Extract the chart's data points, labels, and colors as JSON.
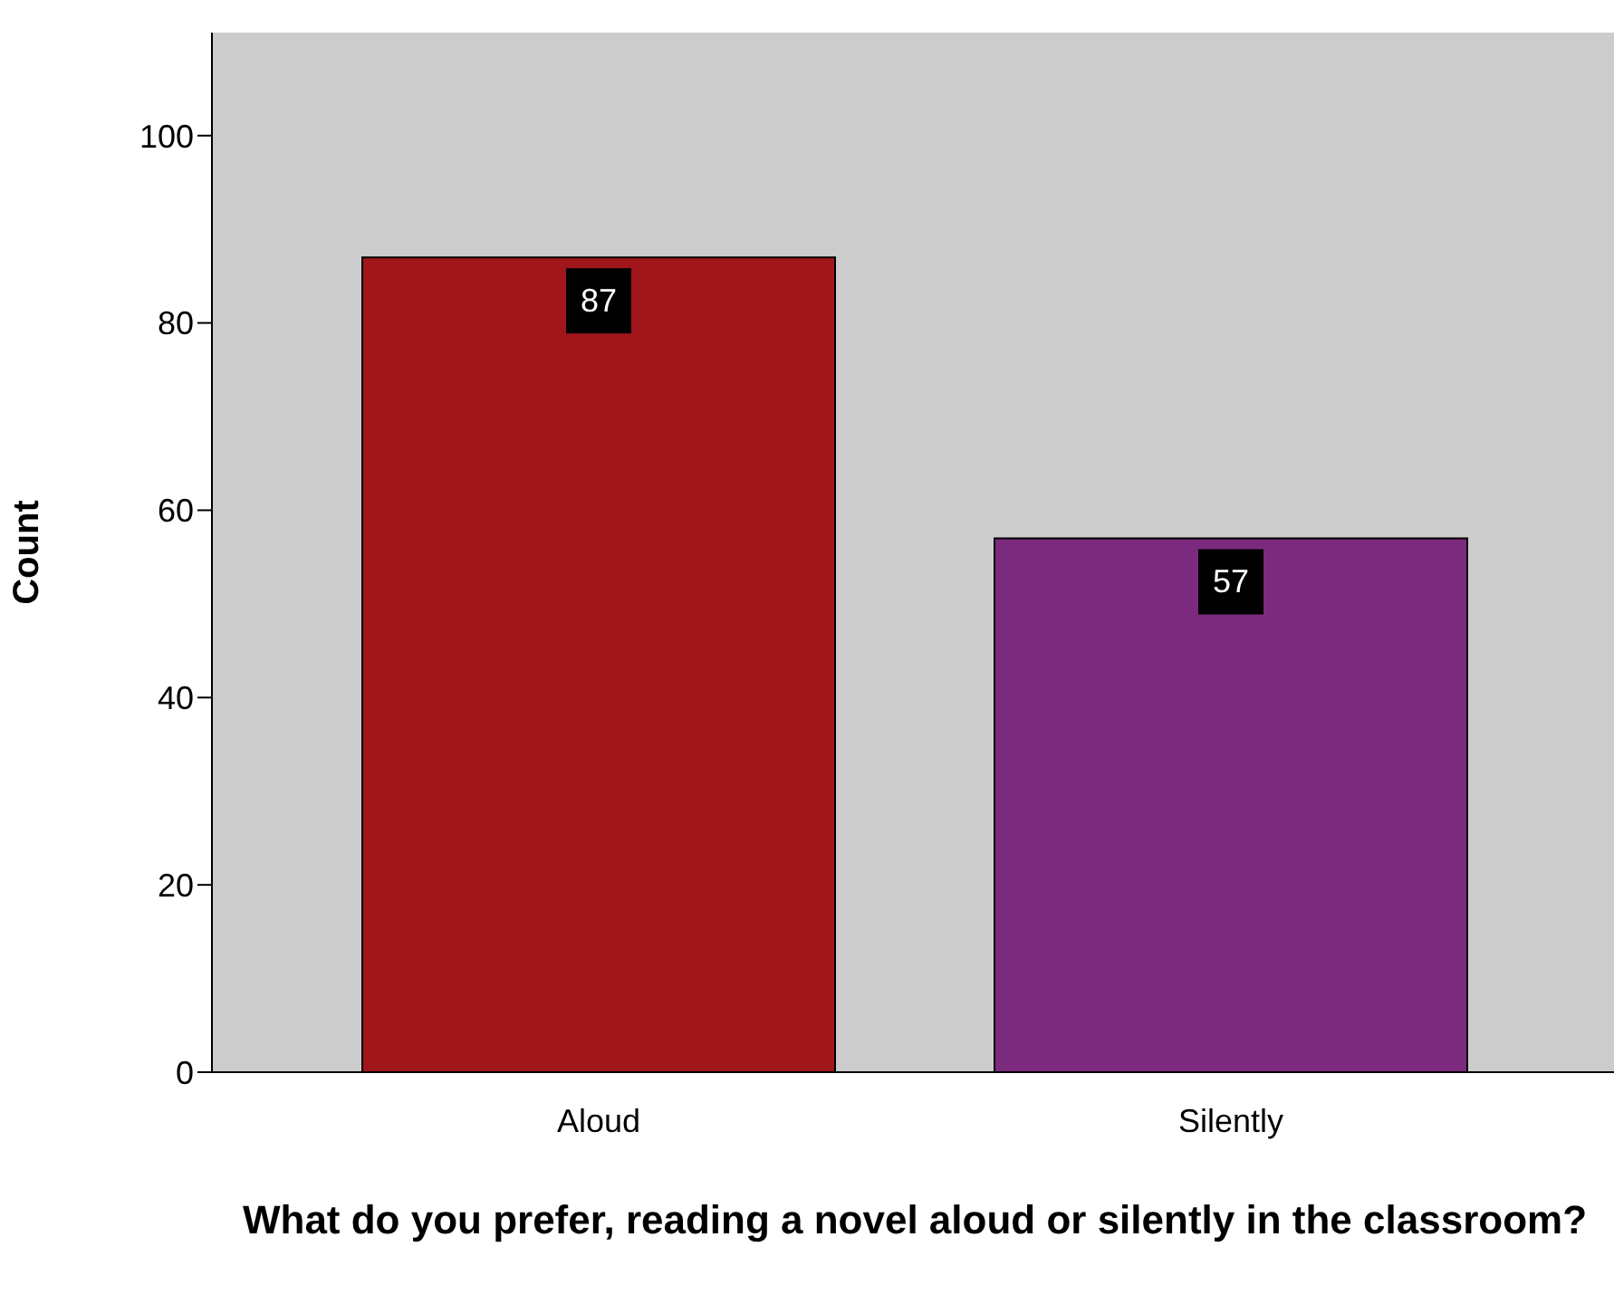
{
  "chart_data": {
    "type": "bar",
    "categories": [
      "Aloud",
      "Silently"
    ],
    "values": [
      87,
      57
    ],
    "colors": [
      "#a0161a",
      "#7b2a7e"
    ],
    "ylim": [
      0,
      111
    ],
    "yticks": [
      0,
      20,
      40,
      60,
      80,
      100
    ],
    "xlabel": "What do you prefer, reading a novel aloud or silently in the classroom?",
    "ylabel": "Count",
    "data_labels": true,
    "grid": false
  }
}
